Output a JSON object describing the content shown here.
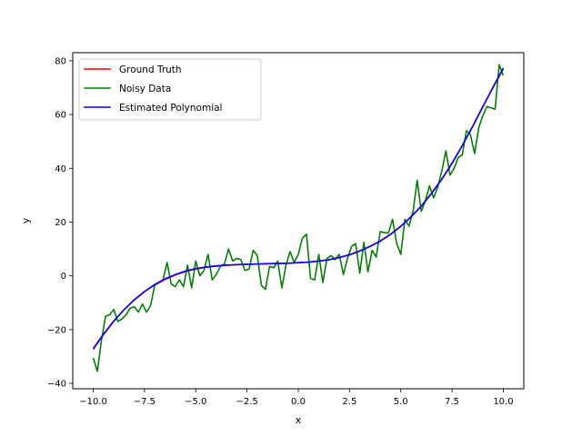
{
  "chart_data": {
    "type": "line",
    "title": "",
    "xlabel": "x",
    "ylabel": "y",
    "xlim": [
      -11.0,
      11.0
    ],
    "ylim": [
      -42,
      83
    ],
    "xticks": [
      -10.0,
      -7.5,
      -5.0,
      -2.5,
      0.0,
      2.5,
      5.0,
      7.5,
      10.0
    ],
    "xtick_labels": [
      "−10.0",
      "−7.5",
      "−5.0",
      "−2.5",
      "0.0",
      "2.5",
      "5.0",
      "7.5",
      "10.0"
    ],
    "yticks": [
      -40,
      -20,
      0,
      20,
      40,
      60,
      80
    ],
    "ytick_labels": [
      "−40",
      "−20",
      "0",
      "20",
      "40",
      "60",
      "80"
    ],
    "grid": false,
    "legend_position": "top-left",
    "series": [
      {
        "name": "Ground Truth",
        "color": "#ff0000",
        "x": [
          -10,
          -9.5,
          -9,
          -8.5,
          -8,
          -7.5,
          -7,
          -6.5,
          -6,
          -5.5,
          -5,
          -4.5,
          -4,
          -3.5,
          -3,
          -2.5,
          -2,
          -1.5,
          -1,
          -0.5,
          0,
          0.5,
          1,
          1.5,
          2,
          2.5,
          3,
          3.5,
          4,
          4.5,
          5,
          5.5,
          6,
          6.5,
          7,
          7.5,
          8,
          8.5,
          9,
          9.5,
          10
        ],
        "y": [
          -27,
          -21.6,
          -16.8,
          -12.6,
          -9.0,
          -5.9,
          -3.4,
          -1.4,
          0.3,
          1.6,
          2.5,
          3.2,
          3.6,
          3.9,
          4.1,
          4.3,
          4.4,
          4.5,
          4.6,
          4.7,
          4.9,
          5.1,
          5.5,
          6.0,
          6.8,
          7.9,
          9.3,
          11.0,
          13.0,
          15.5,
          18.5,
          22.0,
          26.0,
          30.8,
          36.0,
          42.0,
          48.5,
          55.5,
          63.0,
          70.0,
          77.0
        ]
      },
      {
        "name": "Noisy Data",
        "color": "#008000",
        "x": [
          -10.0,
          -9.8,
          -9.6,
          -9.4,
          -9.2,
          -9.0,
          -8.8,
          -8.6,
          -8.4,
          -8.2,
          -8.0,
          -7.8,
          -7.6,
          -7.4,
          -7.2,
          -7.0,
          -6.8,
          -6.6,
          -6.4,
          -6.2,
          -6.0,
          -5.8,
          -5.6,
          -5.4,
          -5.2,
          -5.0,
          -4.8,
          -4.6,
          -4.4,
          -4.2,
          -4.0,
          -3.8,
          -3.6,
          -3.4,
          -3.2,
          -3.0,
          -2.8,
          -2.6,
          -2.4,
          -2.2,
          -2.0,
          -1.8,
          -1.6,
          -1.4,
          -1.2,
          -1.0,
          -0.8,
          -0.6,
          -0.4,
          -0.2,
          0.0,
          0.2,
          0.4,
          0.6,
          0.8,
          1.0,
          1.2,
          1.4,
          1.6,
          1.8,
          2.0,
          2.2,
          2.4,
          2.6,
          2.8,
          3.0,
          3.2,
          3.4,
          3.6,
          3.8,
          4.0,
          4.2,
          4.4,
          4.6,
          4.8,
          5.0,
          5.2,
          5.4,
          5.6,
          5.8,
          6.0,
          6.2,
          6.4,
          6.6,
          6.8,
          7.0,
          7.2,
          7.4,
          7.6,
          7.8,
          8.0,
          8.2,
          8.4,
          8.6,
          8.8,
          9.0,
          9.2,
          9.4,
          9.6,
          9.8,
          10.0
        ],
        "y": [
          -30.5,
          -35.5,
          -24.0,
          -15.0,
          -14.5,
          -12.5,
          -17.0,
          -16.0,
          -14.5,
          -12.0,
          -11.5,
          -13.5,
          -10.5,
          -13.5,
          -11.0,
          -3.5,
          -2.5,
          -1.5,
          5.0,
          -3.0,
          -4.0,
          -1.5,
          -4.0,
          4.0,
          -4.5,
          5.5,
          0.0,
          2.0,
          8.0,
          -1.5,
          0.5,
          3.5,
          4.5,
          10.0,
          5.5,
          6.5,
          6.0,
          2.0,
          2.5,
          9.5,
          7.5,
          -3.5,
          -5.0,
          3.5,
          3.0,
          5.5,
          -4.5,
          4.0,
          9.0,
          5.0,
          8.0,
          14.0,
          15.5,
          -1.0,
          -1.5,
          8.0,
          -2.5,
          6.5,
          7.5,
          6.0,
          8.0,
          0.5,
          6.5,
          11.0,
          12.0,
          1.0,
          12.5,
          1.5,
          9.5,
          7.0,
          16.5,
          16.0,
          16.0,
          21.0,
          12.0,
          8.0,
          21.0,
          18.5,
          24.0,
          35.5,
          24.0,
          28.0,
          33.5,
          29.0,
          33.0,
          39.0,
          46.5,
          37.5,
          40.0,
          44.0,
          45.0,
          54.0,
          52.5,
          45.5,
          55.0,
          59.5,
          63.0,
          62.5,
          62.0,
          78.5,
          74.5
        ]
      },
      {
        "name": "Estimated Polynomial",
        "color": "#0000ff",
        "x": [
          -10,
          -9.5,
          -9,
          -8.5,
          -8,
          -7.5,
          -7,
          -6.5,
          -6,
          -5.5,
          -5,
          -4.5,
          -4,
          -3.5,
          -3,
          -2.5,
          -2,
          -1.5,
          -1,
          -0.5,
          0,
          0.5,
          1,
          1.5,
          2,
          2.5,
          3,
          3.5,
          4,
          4.5,
          5,
          5.5,
          6,
          6.5,
          7,
          7.5,
          8,
          8.5,
          9,
          9.5,
          10
        ],
        "y": [
          -27.3,
          -21.8,
          -16.9,
          -12.6,
          -8.9,
          -5.8,
          -3.2,
          -1.1,
          0.5,
          1.8,
          2.7,
          3.3,
          3.7,
          4.0,
          4.2,
          4.3,
          4.4,
          4.5,
          4.6,
          4.7,
          4.9,
          5.1,
          5.5,
          6.0,
          6.8,
          7.8,
          9.2,
          10.9,
          12.9,
          15.4,
          18.4,
          21.9,
          25.9,
          30.6,
          35.9,
          41.8,
          48.4,
          55.5,
          62.8,
          70.2,
          77.3
        ]
      }
    ]
  }
}
